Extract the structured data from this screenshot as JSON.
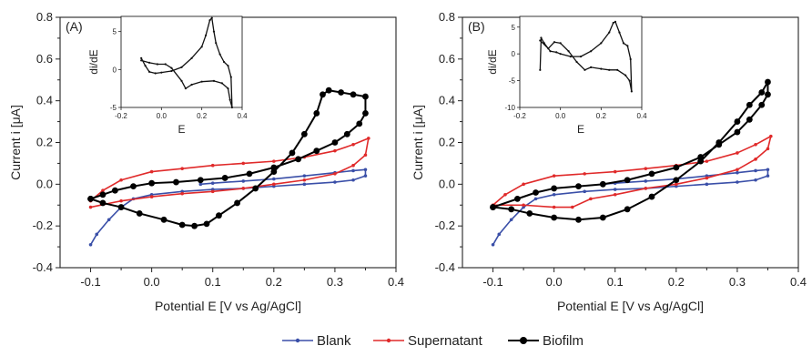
{
  "chart_data": [
    {
      "type": "line",
      "panel_label": "(A)",
      "xlabel": "Potential E [V vs Ag/AgCl]",
      "ylabel": "Current i [μA]",
      "xlim": [
        -0.15,
        0.4
      ],
      "ylim": [
        -0.4,
        0.8
      ],
      "xticks": [
        -0.1,
        0.0,
        0.1,
        0.2,
        0.3,
        0.4
      ],
      "yticks": [
        -0.4,
        -0.2,
        0.0,
        0.2,
        0.4,
        0.6,
        0.8
      ],
      "series": [
        {
          "name": "Blank",
          "color": "#3a4fa8",
          "marker": "small-dot",
          "points": [
            [
              -0.1,
              -0.29
            ],
            [
              -0.09,
              -0.24
            ],
            [
              -0.07,
              -0.17
            ],
            [
              -0.05,
              -0.11
            ],
            [
              -0.03,
              -0.07
            ],
            [
              0.0,
              -0.05
            ],
            [
              0.05,
              -0.035
            ],
            [
              0.1,
              -0.025
            ],
            [
              0.15,
              -0.02
            ],
            [
              0.2,
              -0.01
            ],
            [
              0.25,
              0.0
            ],
            [
              0.3,
              0.01
            ],
            [
              0.33,
              0.02
            ],
            [
              0.35,
              0.04
            ],
            [
              0.35,
              0.07
            ],
            [
              0.33,
              0.065
            ],
            [
              0.3,
              0.055
            ],
            [
              0.25,
              0.04
            ],
            [
              0.2,
              0.025
            ],
            [
              0.15,
              0.015
            ],
            [
              0.1,
              0.005
            ],
            [
              0.08,
              0.0
            ]
          ]
        },
        {
          "name": "Supernatant",
          "color": "#e02a2a",
          "marker": "small-dot",
          "points": [
            [
              -0.1,
              -0.11
            ],
            [
              -0.05,
              -0.08
            ],
            [
              0.0,
              -0.06
            ],
            [
              0.05,
              -0.045
            ],
            [
              0.1,
              -0.035
            ],
            [
              0.15,
              -0.02
            ],
            [
              0.2,
              0.0
            ],
            [
              0.25,
              0.02
            ],
            [
              0.3,
              0.05
            ],
            [
              0.33,
              0.09
            ],
            [
              0.35,
              0.14
            ],
            [
              0.355,
              0.22
            ],
            [
              0.33,
              0.19
            ],
            [
              0.3,
              0.16
            ],
            [
              0.25,
              0.13
            ],
            [
              0.2,
              0.11
            ],
            [
              0.15,
              0.1
            ],
            [
              0.1,
              0.09
            ],
            [
              0.05,
              0.075
            ],
            [
              0.0,
              0.06
            ],
            [
              -0.05,
              0.02
            ],
            [
              -0.08,
              -0.03
            ],
            [
              -0.1,
              -0.08
            ]
          ]
        },
        {
          "name": "Biofilm",
          "color": "#000000",
          "marker": "large-dot",
          "points": [
            [
              -0.1,
              -0.07
            ],
            [
              -0.08,
              -0.09
            ],
            [
              -0.05,
              -0.11
            ],
            [
              -0.02,
              -0.14
            ],
            [
              0.02,
              -0.17
            ],
            [
              0.05,
              -0.195
            ],
            [
              0.07,
              -0.2
            ],
            [
              0.09,
              -0.19
            ],
            [
              0.11,
              -0.15
            ],
            [
              0.14,
              -0.09
            ],
            [
              0.17,
              -0.02
            ],
            [
              0.2,
              0.06
            ],
            [
              0.23,
              0.15
            ],
            [
              0.25,
              0.24
            ],
            [
              0.27,
              0.34
            ],
            [
              0.28,
              0.43
            ],
            [
              0.29,
              0.45
            ],
            [
              0.31,
              0.44
            ],
            [
              0.33,
              0.43
            ],
            [
              0.35,
              0.42
            ],
            [
              0.35,
              0.34
            ],
            [
              0.34,
              0.29
            ],
            [
              0.32,
              0.24
            ],
            [
              0.3,
              0.2
            ],
            [
              0.27,
              0.16
            ],
            [
              0.24,
              0.12
            ],
            [
              0.2,
              0.08
            ],
            [
              0.16,
              0.05
            ],
            [
              0.12,
              0.03
            ],
            [
              0.08,
              0.02
            ],
            [
              0.04,
              0.01
            ],
            [
              0.0,
              0.005
            ],
            [
              -0.03,
              -0.01
            ],
            [
              -0.06,
              -0.03
            ],
            [
              -0.08,
              -0.05
            ],
            [
              -0.1,
              -0.07
            ]
          ]
        }
      ],
      "inset": {
        "xlabel": "E",
        "ylabel": "di/dE",
        "xlim": [
          -0.2,
          0.4
        ],
        "ylim": [
          -5,
          7
        ],
        "xticks": [
          -0.2,
          0.0,
          0.2,
          0.4
        ],
        "yticks": [
          -5,
          0,
          5
        ],
        "points": [
          [
            -0.1,
            1.5
          ],
          [
            -0.08,
            0.5
          ],
          [
            -0.06,
            -0.3
          ],
          [
            -0.03,
            -0.5
          ],
          [
            0.0,
            -0.4
          ],
          [
            0.05,
            -0.2
          ],
          [
            0.1,
            0.3
          ],
          [
            0.15,
            1.5
          ],
          [
            0.2,
            3.0
          ],
          [
            0.22,
            4.5
          ],
          [
            0.24,
            6.5
          ],
          [
            0.25,
            6.8
          ],
          [
            0.26,
            5.0
          ],
          [
            0.27,
            3.5
          ],
          [
            0.29,
            2.0
          ],
          [
            0.31,
            1.0
          ],
          [
            0.33,
            0.5
          ],
          [
            0.345,
            -1.0
          ],
          [
            0.35,
            -5.0
          ],
          [
            0.34,
            -4.0
          ],
          [
            0.33,
            -2.5
          ],
          [
            0.3,
            -1.8
          ],
          [
            0.26,
            -1.5
          ],
          [
            0.2,
            -1.6
          ],
          [
            0.15,
            -2.0
          ],
          [
            0.12,
            -2.5
          ],
          [
            0.1,
            -1.5
          ],
          [
            0.05,
            0.2
          ],
          [
            0.02,
            0.7
          ],
          [
            -0.02,
            0.7
          ],
          [
            -0.06,
            0.9
          ],
          [
            -0.1,
            1.2
          ]
        ]
      }
    },
    {
      "type": "line",
      "panel_label": "(B)",
      "xlabel": "Potential E [V vs Ag/AgCl]",
      "ylabel": "Current i [μA]",
      "xlim": [
        -0.15,
        0.4
      ],
      "ylim": [
        -0.4,
        0.8
      ],
      "xticks": [
        -0.1,
        0.0,
        0.1,
        0.2,
        0.3,
        0.4
      ],
      "yticks": [
        -0.4,
        -0.2,
        0.0,
        0.2,
        0.4,
        0.6,
        0.8
      ],
      "series": [
        {
          "name": "Blank",
          "color": "#3a4fa8",
          "marker": "small-dot",
          "points": [
            [
              -0.1,
              -0.29
            ],
            [
              -0.09,
              -0.24
            ],
            [
              -0.07,
              -0.17
            ],
            [
              -0.05,
              -0.11
            ],
            [
              -0.03,
              -0.07
            ],
            [
              0.0,
              -0.05
            ],
            [
              0.05,
              -0.035
            ],
            [
              0.1,
              -0.025
            ],
            [
              0.15,
              -0.02
            ],
            [
              0.2,
              -0.01
            ],
            [
              0.25,
              0.0
            ],
            [
              0.3,
              0.01
            ],
            [
              0.33,
              0.02
            ],
            [
              0.35,
              0.04
            ],
            [
              0.35,
              0.07
            ],
            [
              0.33,
              0.065
            ],
            [
              0.3,
              0.055
            ],
            [
              0.25,
              0.04
            ],
            [
              0.2,
              0.025
            ],
            [
              0.15,
              0.015
            ],
            [
              0.1,
              0.005
            ],
            [
              0.08,
              0.0
            ]
          ]
        },
        {
          "name": "Supernatant",
          "color": "#e02a2a",
          "marker": "small-dot",
          "points": [
            [
              -0.1,
              -0.1
            ],
            [
              -0.05,
              -0.1
            ],
            [
              0.0,
              -0.11
            ],
            [
              0.03,
              -0.11
            ],
            [
              0.06,
              -0.07
            ],
            [
              0.1,
              -0.05
            ],
            [
              0.15,
              -0.02
            ],
            [
              0.2,
              0.0
            ],
            [
              0.25,
              0.03
            ],
            [
              0.3,
              0.07
            ],
            [
              0.33,
              0.12
            ],
            [
              0.35,
              0.17
            ],
            [
              0.355,
              0.23
            ],
            [
              0.33,
              0.19
            ],
            [
              0.3,
              0.15
            ],
            [
              0.25,
              0.11
            ],
            [
              0.2,
              0.09
            ],
            [
              0.15,
              0.075
            ],
            [
              0.1,
              0.06
            ],
            [
              0.05,
              0.05
            ],
            [
              0.0,
              0.04
            ],
            [
              -0.05,
              0.0
            ],
            [
              -0.08,
              -0.05
            ],
            [
              -0.1,
              -0.1
            ]
          ]
        },
        {
          "name": "Biofilm",
          "color": "#000000",
          "marker": "large-dot",
          "points": [
            [
              -0.1,
              -0.11
            ],
            [
              -0.07,
              -0.12
            ],
            [
              -0.04,
              -0.14
            ],
            [
              0.0,
              -0.16
            ],
            [
              0.04,
              -0.17
            ],
            [
              0.08,
              -0.16
            ],
            [
              0.12,
              -0.12
            ],
            [
              0.16,
              -0.06
            ],
            [
              0.2,
              0.02
            ],
            [
              0.24,
              0.11
            ],
            [
              0.27,
              0.2
            ],
            [
              0.3,
              0.3
            ],
            [
              0.32,
              0.38
            ],
            [
              0.34,
              0.44
            ],
            [
              0.35,
              0.49
            ],
            [
              0.35,
              0.43
            ],
            [
              0.34,
              0.38
            ],
            [
              0.32,
              0.31
            ],
            [
              0.3,
              0.25
            ],
            [
              0.27,
              0.19
            ],
            [
              0.24,
              0.13
            ],
            [
              0.2,
              0.08
            ],
            [
              0.16,
              0.05
            ],
            [
              0.12,
              0.02
            ],
            [
              0.08,
              0.0
            ],
            [
              0.04,
              -0.01
            ],
            [
              0.0,
              -0.02
            ],
            [
              -0.03,
              -0.04
            ],
            [
              -0.06,
              -0.07
            ],
            [
              -0.1,
              -0.11
            ]
          ]
        }
      ],
      "inset": {
        "xlabel": "E",
        "ylabel": "di/dE",
        "xlim": [
          -0.2,
          0.4
        ],
        "ylim": [
          -10,
          7
        ],
        "xticks": [
          -0.2,
          0.0,
          0.2,
          0.4
        ],
        "yticks": [
          -10,
          -5,
          0,
          5
        ],
        "points": [
          [
            -0.1,
            -3.0
          ],
          [
            -0.095,
            3.0
          ],
          [
            -0.08,
            2.0
          ],
          [
            -0.05,
            0.5
          ],
          [
            -0.02,
            0.3
          ],
          [
            0.0,
            0.0
          ],
          [
            0.05,
            -0.5
          ],
          [
            0.1,
            -0.5
          ],
          [
            0.15,
            0.5
          ],
          [
            0.2,
            2.0
          ],
          [
            0.24,
            4.0
          ],
          [
            0.26,
            5.8
          ],
          [
            0.27,
            6.0
          ],
          [
            0.29,
            4.0
          ],
          [
            0.31,
            2.0
          ],
          [
            0.33,
            1.5
          ],
          [
            0.345,
            -1.0
          ],
          [
            0.35,
            -7.0
          ],
          [
            0.34,
            -5.0
          ],
          [
            0.32,
            -4.0
          ],
          [
            0.28,
            -3.0
          ],
          [
            0.24,
            -3.0
          ],
          [
            0.2,
            -2.8
          ],
          [
            0.15,
            -2.5
          ],
          [
            0.12,
            -3.0
          ],
          [
            0.08,
            -1.5
          ],
          [
            0.04,
            0.5
          ],
          [
            0.0,
            2.0
          ],
          [
            -0.03,
            2.2
          ],
          [
            -0.06,
            1.0
          ],
          [
            -0.1,
            2.5
          ]
        ]
      }
    }
  ],
  "legend": [
    {
      "label": "Blank",
      "color": "#3a4fa8"
    },
    {
      "label": "Supernatant",
      "color": "#e02a2a"
    },
    {
      "label": "Biofilm",
      "color": "#000000"
    }
  ]
}
